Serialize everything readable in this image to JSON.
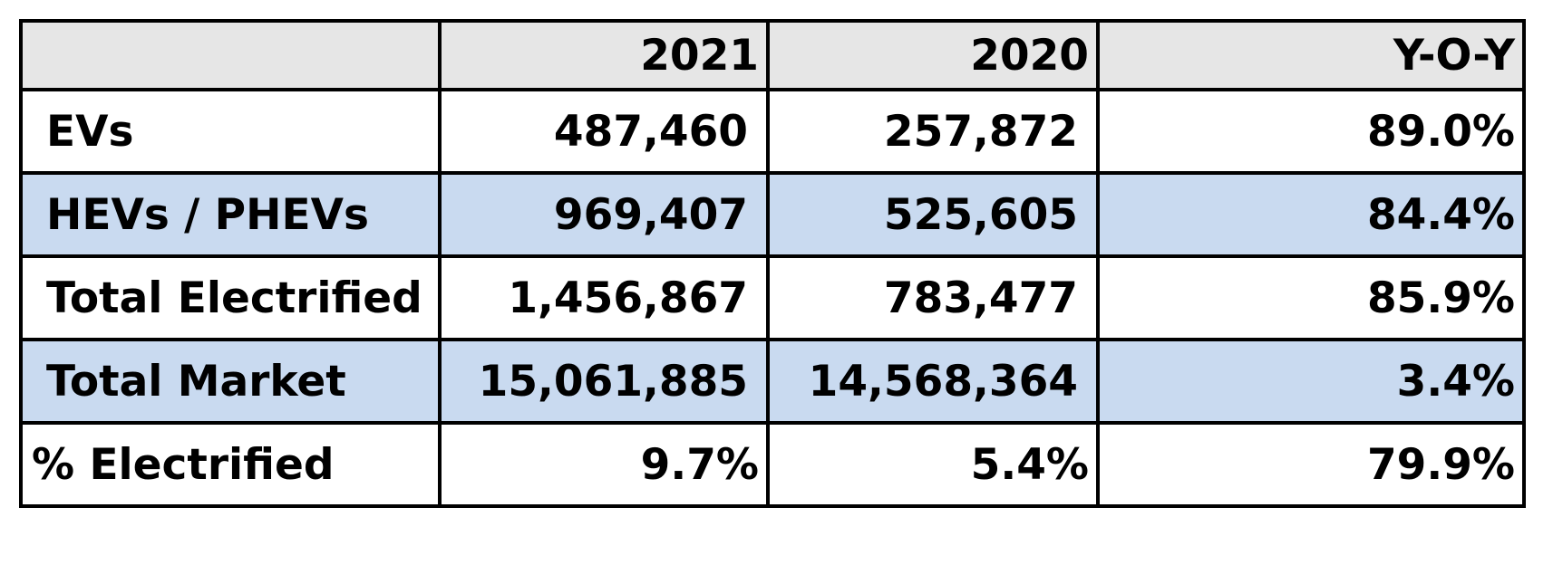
{
  "chart_data": {
    "type": "table",
    "columns": [
      "",
      "2021",
      "2020",
      "Y-O-Y"
    ],
    "rows": [
      {
        "label": "EVs",
        "values": [
          "487,460",
          "257,872",
          "89.0%"
        ],
        "shaded": false
      },
      {
        "label": "HEVs / PHEVs",
        "values": [
          "969,407",
          "525,605",
          "84.4%"
        ],
        "shaded": true
      },
      {
        "label": "Total Electrified",
        "values": [
          "1,456,867",
          "783,477",
          "85.9%"
        ],
        "shaded": false
      },
      {
        "label": "Total Market",
        "values": [
          "15,061,885",
          "14,568,364",
          "3.4%"
        ],
        "shaded": true
      },
      {
        "label": "% Electrified",
        "values": [
          "9.7%",
          "5.4%",
          "79.9%"
        ],
        "shaded": false
      }
    ],
    "colors": {
      "header_fill": "#e6e6e6",
      "shaded_row_fill": "#c9daf0",
      "border": "#000000"
    }
  }
}
